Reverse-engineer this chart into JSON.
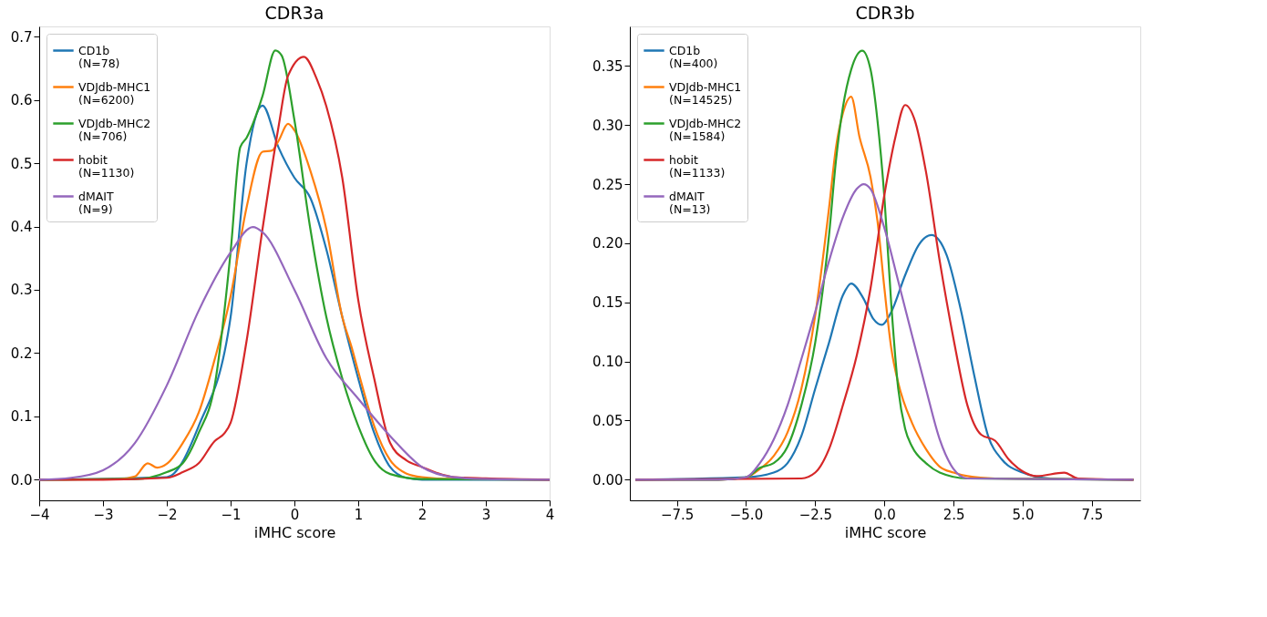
{
  "chart_data": [
    {
      "type": "line",
      "title": "CDR3a",
      "xlabel": "iMHC score",
      "legend": "top left",
      "grid": false,
      "marker": "none",
      "line_style": "solid",
      "xlim": [
        -4,
        4
      ],
      "ylim": [
        -0.0326,
        0.716
      ],
      "xticks": [
        -4,
        -3,
        -2,
        -1,
        0,
        1,
        2,
        3,
        4
      ],
      "yticks": [
        {
          "value": 0,
          "label": "0.0"
        },
        0.1,
        0.2,
        0.3,
        0.4,
        0.5,
        0.6,
        0.7
      ],
      "series": [
        {
          "name": "CD1b\n(N=78)",
          "color": "#1f77b4",
          "x": [
            -4,
            -2,
            -1.5,
            -1,
            -0.75,
            -0.5,
            -0.25,
            0,
            0.25,
            0.5,
            0.75,
            1,
            1.25,
            1.5,
            1.75,
            2,
            4
          ],
          "values": [
            0,
            0.004,
            0.085,
            0.257,
            0.5,
            0.591,
            0.525,
            0.477,
            0.445,
            0.364,
            0.257,
            0.16,
            0.074,
            0.02,
            0.003,
            0,
            0
          ]
        },
        {
          "name": "VDJdb-MHC1\n(N=6200)",
          "color": "#ff7f0e",
          "x": [
            -4,
            -2.75,
            -2.5,
            -2.3,
            -2.15,
            -2,
            -1.75,
            -1.5,
            -1.25,
            -1,
            -0.75,
            -0.5,
            -0.35,
            -0.25,
            -0.1,
            0,
            0.25,
            0.5,
            0.75,
            0.9,
            1,
            1.25,
            1.5,
            1.75,
            2,
            2.5,
            4
          ],
          "values": [
            0,
            0.001,
            0.005,
            0.026,
            0.019,
            0.025,
            0.058,
            0.106,
            0.19,
            0.29,
            0.43,
            0.518,
            0.52,
            0.535,
            0.562,
            0.552,
            0.488,
            0.396,
            0.257,
            0.208,
            0.171,
            0.085,
            0.031,
            0.01,
            0.004,
            0.001,
            0
          ]
        },
        {
          "name": "VDJdb-MHC2\n(N=706)",
          "color": "#2ca02c",
          "x": [
            -4,
            -2.5,
            -2,
            -1.75,
            -1.5,
            -1.25,
            -1,
            -0.85,
            -0.75,
            -0.5,
            -0.3,
            -0.2,
            0,
            0.25,
            0.5,
            0.75,
            1,
            1.25,
            1.5,
            2,
            4
          ],
          "values": [
            0,
            0.001,
            0.012,
            0.026,
            0.074,
            0.149,
            0.36,
            0.525,
            0.54,
            0.606,
            0.678,
            0.67,
            0.568,
            0.396,
            0.257,
            0.16,
            0.085,
            0.031,
            0.009,
            0.001,
            0
          ]
        },
        {
          "name": "hobit\n(N=1130)",
          "color": "#d62728",
          "x": [
            -4,
            -3,
            -2,
            -1.75,
            -1.5,
            -1.25,
            -1.1,
            -1,
            -0.75,
            -0.5,
            -0.25,
            -0.1,
            0.15,
            0.35,
            0.5,
            0.75,
            1,
            1.25,
            1.5,
            1.75,
            2,
            2.25,
            2.5,
            3,
            4
          ],
          "values": [
            0,
            0,
            0.003,
            0.012,
            0.026,
            0.061,
            0.073,
            0.09,
            0.219,
            0.396,
            0.557,
            0.638,
            0.668,
            0.633,
            0.59,
            0.477,
            0.284,
            0.16,
            0.058,
            0.031,
            0.02,
            0.01,
            0.004,
            0.002,
            0
          ]
        },
        {
          "name": "dMAIT\n(N=9)",
          "color": "#9467bd",
          "x": [
            -4,
            -3.5,
            -3,
            -2.5,
            -2,
            -1.5,
            -1,
            -0.65,
            -0.5,
            0,
            0.5,
            1,
            1.5,
            2,
            2.5,
            3,
            4
          ],
          "values": [
            0,
            0.003,
            0.015,
            0.058,
            0.149,
            0.267,
            0.359,
            0.399,
            0.391,
            0.3,
            0.192,
            0.128,
            0.069,
            0.02,
            0.004,
            0.001,
            0
          ]
        }
      ]
    },
    {
      "type": "line",
      "title": "CDR3b",
      "xlabel": "iMHC score",
      "legend": "top left",
      "grid": false,
      "marker": "none",
      "line_style": "solid",
      "xlim": [
        -9.2,
        9.25
      ],
      "ylim": [
        -0.0175,
        0.3835
      ],
      "xticks": [
        {
          "value": -7.5,
          "label": "−7.5"
        },
        {
          "value": -5,
          "label": "−5.0"
        },
        {
          "value": -2.5,
          "label": "−2.5"
        },
        {
          "value": 0,
          "label": "0.0"
        },
        2.5,
        {
          "value": 5,
          "label": "5.0"
        },
        7.5
      ],
      "yticks": [
        {
          "value": 0,
          "label": "0.00"
        },
        0.05,
        {
          "value": 0.1,
          "label": "0.10"
        },
        0.15,
        {
          "value": 0.2,
          "label": "0.20"
        },
        0.25,
        {
          "value": 0.3,
          "label": "0.30"
        },
        0.35
      ],
      "series": [
        {
          "name": "CD1b\n(N=400)",
          "color": "#1f77b4",
          "x": [
            -9,
            -5,
            -4,
            -3.5,
            -3,
            -2.5,
            -2,
            -1.5,
            -1.2,
            -0.75,
            -0.4,
            -0.1,
            0.25,
            0.75,
            1.25,
            1.7,
            2.25,
            2.75,
            3.25,
            3.75,
            4.25,
            5,
            6,
            9
          ],
          "values": [
            0,
            0.002,
            0.006,
            0.014,
            0.037,
            0.077,
            0.116,
            0.156,
            0.166,
            0.153,
            0.136,
            0.131,
            0.142,
            0.173,
            0.199,
            0.207,
            0.19,
            0.145,
            0.088,
            0.037,
            0.017,
            0.006,
            0.001,
            0
          ]
        },
        {
          "name": "VDJdb-MHC1\n(N=14525)",
          "color": "#ff7f0e",
          "x": [
            -9,
            -6,
            -5,
            -4.5,
            -4,
            -3.5,
            -3,
            -2.5,
            -2,
            -1.75,
            -1.5,
            -1.2,
            -0.9,
            -0.5,
            -0.25,
            0,
            0.25,
            0.5,
            1,
            1.5,
            2,
            2.5,
            3,
            4,
            9
          ],
          "values": [
            0,
            0,
            0.002,
            0.009,
            0.02,
            0.04,
            0.077,
            0.139,
            0.23,
            0.281,
            0.31,
            0.324,
            0.29,
            0.256,
            0.219,
            0.162,
            0.111,
            0.082,
            0.048,
            0.026,
            0.011,
            0.006,
            0.003,
            0.001,
            0
          ]
        },
        {
          "name": "VDJdb-MHC2\n(N=1584)",
          "color": "#2ca02c",
          "x": [
            -9,
            -6,
            -5,
            -4.5,
            -4,
            -3.5,
            -3,
            -2.5,
            -2,
            -1.75,
            -1.5,
            -1.2,
            -0.8,
            -0.5,
            -0.25,
            0,
            0.25,
            0.5,
            0.75,
            1,
            1.5,
            2,
            3,
            9
          ],
          "values": [
            0,
            0,
            0.002,
            0.01,
            0.014,
            0.028,
            0.063,
            0.116,
            0.207,
            0.27,
            0.315,
            0.347,
            0.363,
            0.347,
            0.304,
            0.239,
            0.148,
            0.077,
            0.043,
            0.028,
            0.014,
            0.006,
            0.001,
            0
          ]
        },
        {
          "name": "hobit\n(N=1133)",
          "color": "#d62728",
          "x": [
            -9,
            -3,
            -2.5,
            -2,
            -1.5,
            -1,
            -0.5,
            0,
            0.4,
            0.75,
            1.1,
            1.5,
            2,
            2.5,
            3,
            3.5,
            4,
            4.5,
            5,
            5.5,
            6.5,
            7,
            9
          ],
          "values": [
            0,
            0.001,
            0.006,
            0.026,
            0.063,
            0.105,
            0.162,
            0.241,
            0.29,
            0.317,
            0.304,
            0.261,
            0.185,
            0.119,
            0.063,
            0.038,
            0.033,
            0.017,
            0.007,
            0.003,
            0.006,
            0.001,
            0
          ]
        },
        {
          "name": "dMAIT\n(N=13)",
          "color": "#9467bd",
          "x": [
            -9,
            -6,
            -5,
            -4.5,
            -4,
            -3.5,
            -3,
            -2.5,
            -2,
            -1.5,
            -1,
            -0.75,
            -0.5,
            0,
            0.5,
            1,
            1.5,
            2,
            2.5,
            3,
            9
          ],
          "values": [
            0,
            0,
            0.002,
            0.014,
            0.034,
            0.063,
            0.102,
            0.142,
            0.185,
            0.222,
            0.246,
            0.25,
            0.246,
            0.213,
            0.168,
            0.122,
            0.077,
            0.034,
            0.009,
            0.001,
            0
          ]
        }
      ]
    }
  ]
}
